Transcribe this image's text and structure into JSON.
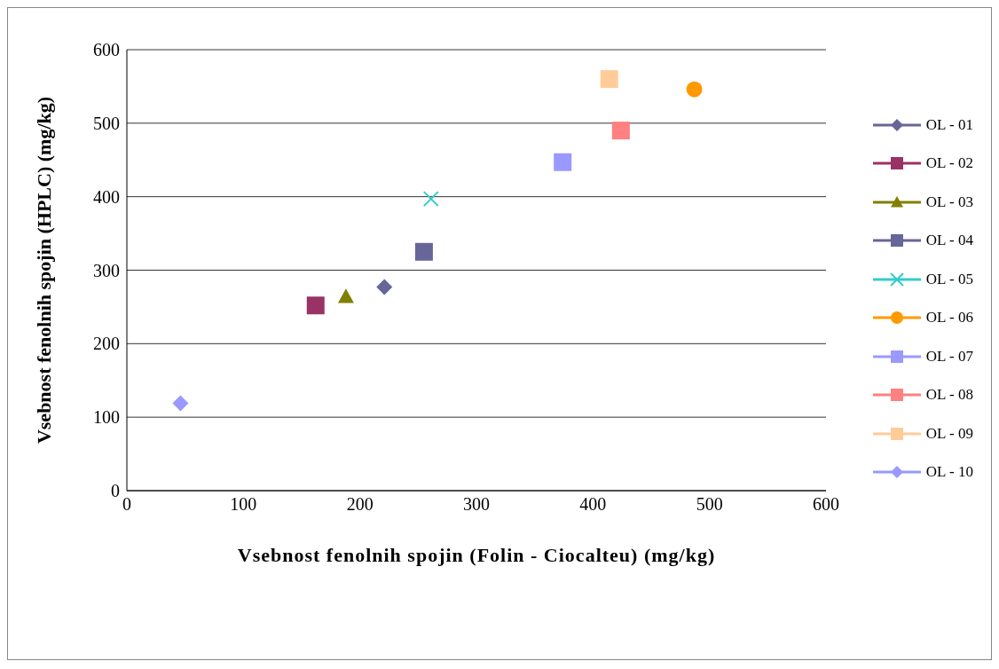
{
  "chart_data": {
    "type": "scatter",
    "xlabel": "Vsebnost fenolnih spojin (Folin - Ciocalteu) (mg/kg)",
    "ylabel": "Vsebnost fenolnih spojin (HPLC) (mg/kg)",
    "xlim": [
      0,
      600
    ],
    "xticks": [
      0,
      100,
      200,
      300,
      400,
      500,
      600
    ],
    "ylim": [
      0,
      600
    ],
    "yticks": [
      0,
      100,
      200,
      300,
      400,
      500,
      600
    ],
    "grid": "y",
    "legend": "right",
    "series": [
      {
        "name": "OL - 01",
        "color": "#666699",
        "marker": "diamond",
        "x": [
          221
        ],
        "values": [
          277
        ]
      },
      {
        "name": "OL - 02",
        "color": "#993366",
        "marker": "square",
        "x": [
          162
        ],
        "values": [
          252
        ]
      },
      {
        "name": "OL - 03",
        "color": "#808000",
        "marker": "triangle",
        "x": [
          188
        ],
        "values": [
          264
        ]
      },
      {
        "name": "OL - 04",
        "color": "#666699",
        "marker": "square",
        "x": [
          255
        ],
        "values": [
          325
        ]
      },
      {
        "name": "OL - 05",
        "color": "#33cccc",
        "marker": "cross",
        "x": [
          261
        ],
        "values": [
          397
        ]
      },
      {
        "name": "OL - 06",
        "color": "#ff9900",
        "marker": "circle",
        "x": [
          487
        ],
        "values": [
          546
        ]
      },
      {
        "name": "OL - 07",
        "color": "#9999ff",
        "marker": "square",
        "x": [
          374
        ],
        "values": [
          447
        ]
      },
      {
        "name": "OL - 08",
        "color": "#ff8080",
        "marker": "square",
        "x": [
          424
        ],
        "values": [
          490
        ]
      },
      {
        "name": "OL - 09",
        "color": "#ffcc99",
        "marker": "square",
        "x": [
          414
        ],
        "values": [
          560
        ]
      },
      {
        "name": "OL - 10",
        "color": "#9999ff",
        "marker": "diamond",
        "x": [
          46
        ],
        "values": [
          119
        ]
      }
    ]
  }
}
